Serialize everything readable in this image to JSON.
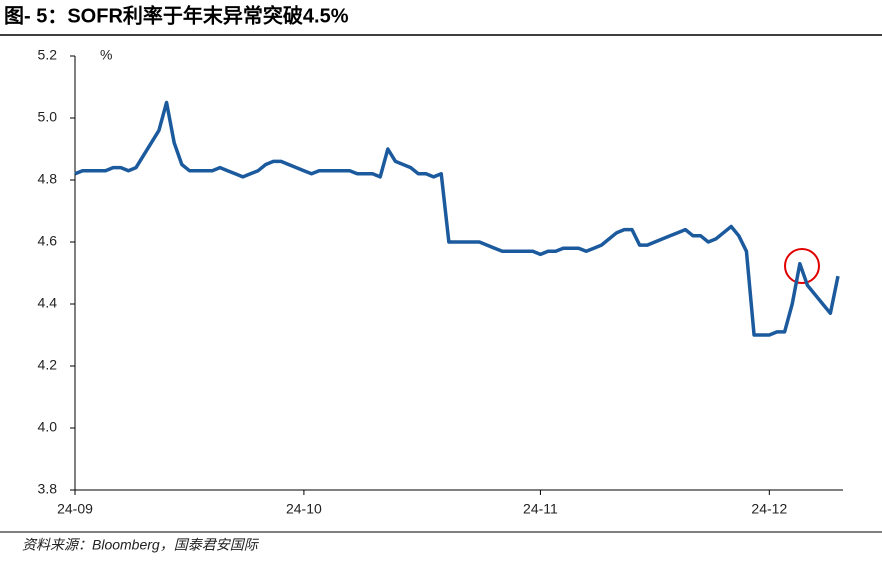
{
  "chart_data": {
    "type": "line",
    "title": "图- 5：SOFR利率于年末异常突破4.5%",
    "y_unit": "%",
    "source": "资料来源：Bloomberg，国泰君安国际",
    "categories": [
      "24-09",
      null,
      null,
      null,
      null,
      null,
      null,
      null,
      null,
      null,
      null,
      null,
      null,
      null,
      null,
      null,
      null,
      null,
      null,
      null,
      null,
      null,
      null,
      null,
      null,
      null,
      null,
      null,
      null,
      null,
      "24-10",
      null,
      null,
      null,
      null,
      null,
      null,
      null,
      null,
      null,
      null,
      null,
      null,
      null,
      null,
      null,
      null,
      null,
      null,
      null,
      null,
      null,
      null,
      null,
      null,
      null,
      null,
      null,
      null,
      null,
      null,
      "24-11",
      null,
      null,
      null,
      null,
      null,
      null,
      null,
      null,
      null,
      null,
      null,
      null,
      null,
      null,
      null,
      null,
      null,
      null,
      null,
      null,
      null,
      null,
      null,
      null,
      null,
      null,
      null,
      null,
      null,
      "24-12",
      null,
      null,
      null,
      null,
      null,
      null,
      null,
      null,
      null
    ],
    "values": [
      4.82,
      4.83,
      4.83,
      4.83,
      4.83,
      4.84,
      4.84,
      4.83,
      4.84,
      4.88,
      4.92,
      4.96,
      5.05,
      4.92,
      4.85,
      4.83,
      4.83,
      4.83,
      4.83,
      4.84,
      4.83,
      4.82,
      4.81,
      4.82,
      4.83,
      4.85,
      4.86,
      4.86,
      4.85,
      4.84,
      4.83,
      4.82,
      4.83,
      4.83,
      4.83,
      4.83,
      4.83,
      4.82,
      4.82,
      4.82,
      4.81,
      4.9,
      4.86,
      4.85,
      4.84,
      4.82,
      4.82,
      4.81,
      4.82,
      4.6,
      4.6,
      4.6,
      4.6,
      4.6,
      4.59,
      4.58,
      4.57,
      4.57,
      4.57,
      4.57,
      4.57,
      4.56,
      4.57,
      4.57,
      4.58,
      4.58,
      4.58,
      4.57,
      4.58,
      4.59,
      4.61,
      4.63,
      4.64,
      4.64,
      4.59,
      4.59,
      4.6,
      4.61,
      4.62,
      4.63,
      4.64,
      4.62,
      4.62,
      4.6,
      4.61,
      4.63,
      4.65,
      4.62,
      4.57,
      4.3,
      4.3,
      4.3,
      4.31,
      4.31,
      4.4,
      4.53,
      4.46,
      4.43,
      4.4,
      4.37,
      4.49
    ],
    "color": "#1c5a9e",
    "ylim": [
      3.8,
      5.2
    ],
    "yticks": [
      3.8,
      {
        "value": 4,
        "label": "4.0"
      },
      4.2,
      4.4,
      4.6,
      4.8,
      {
        "value": 5,
        "label": "5.0"
      },
      5.2
    ],
    "grid": false
  }
}
